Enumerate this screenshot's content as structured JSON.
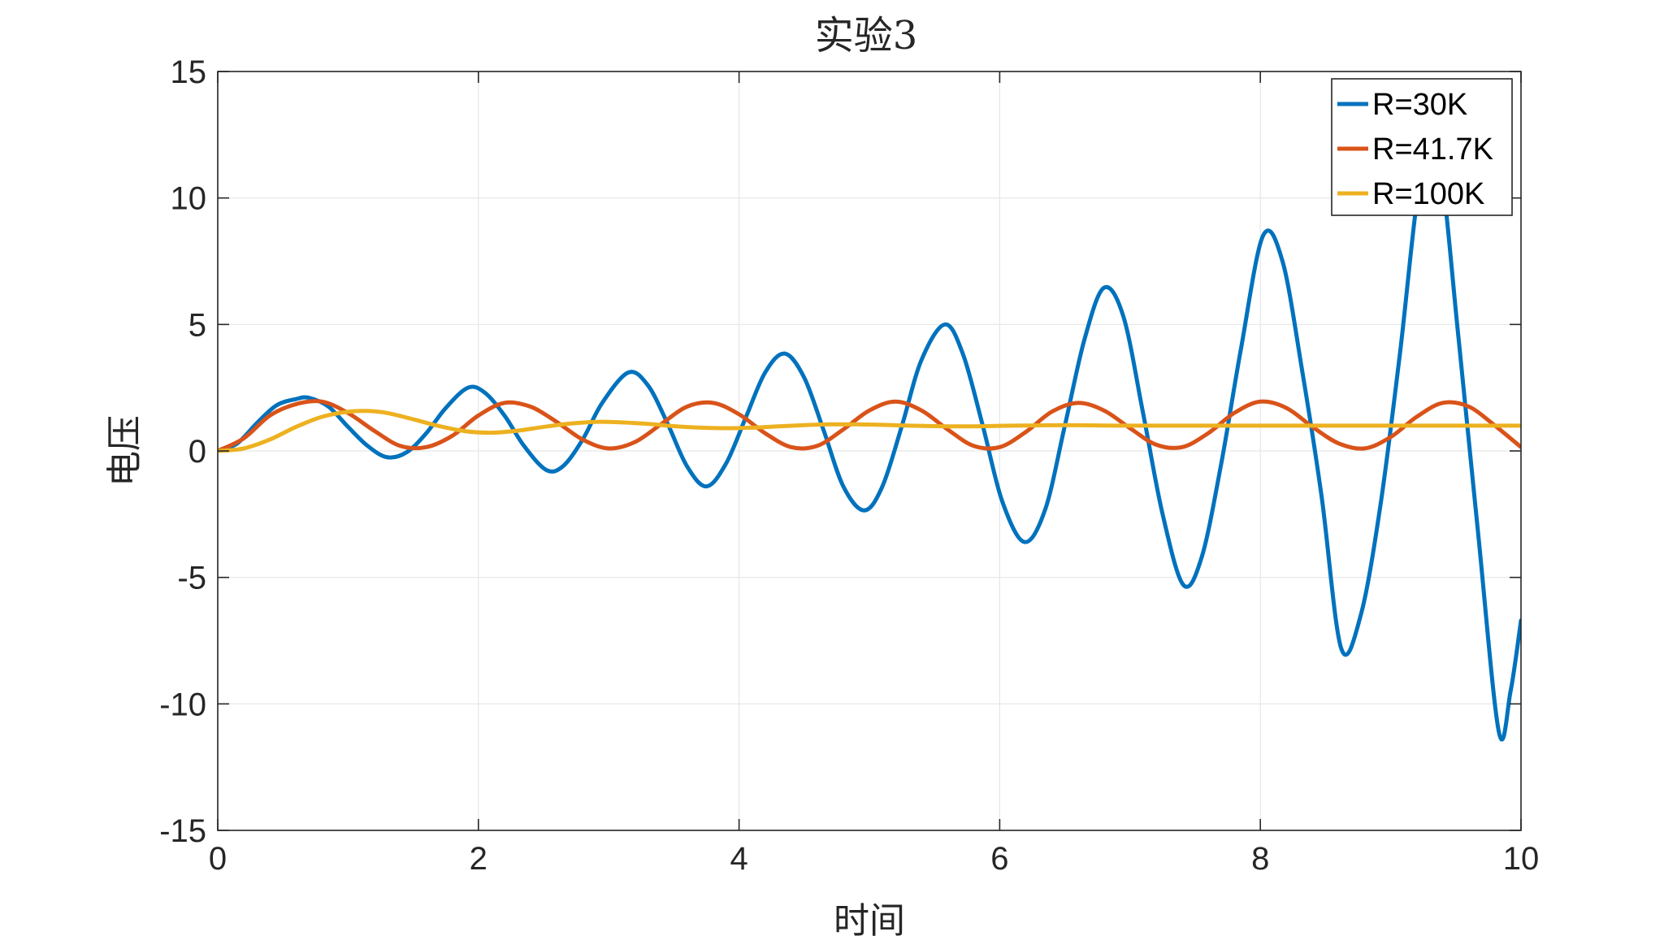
{
  "chart_data": {
    "type": "line",
    "title": "实验3",
    "xlabel": "时间",
    "ylabel": "电压",
    "xlim": [
      0,
      10
    ],
    "ylim": [
      -15,
      15
    ],
    "xticks": [
      0,
      2,
      4,
      6,
      8,
      10
    ],
    "yticks": [
      -15,
      -10,
      -5,
      0,
      5,
      10,
      15
    ],
    "grid": true,
    "legend_position": "top-right",
    "series": [
      {
        "name": "R=30K",
        "color": "#0072BD",
        "x": [
          0,
          0.15,
          0.3,
          0.45,
          0.6,
          0.7,
          0.85,
          1.0,
          1.15,
          1.3,
          1.45,
          1.6,
          1.75,
          1.92,
          2.05,
          2.2,
          2.35,
          2.52,
          2.65,
          2.8,
          2.95,
          3.15,
          3.3,
          3.45,
          3.6,
          3.75,
          3.9,
          4.05,
          4.2,
          4.35,
          4.5,
          4.65,
          4.8,
          4.96,
          5.1,
          5.25,
          5.4,
          5.58,
          5.72,
          5.87,
          6.02,
          6.19,
          6.35,
          6.5,
          6.65,
          6.8,
          6.95,
          7.1,
          7.25,
          7.41,
          7.55,
          7.7,
          7.85,
          8.02,
          8.17,
          8.32,
          8.47,
          8.62,
          8.77,
          8.92,
          9.07,
          9.23,
          9.37,
          9.52,
          9.67,
          9.83,
          9.92,
          10.0
        ],
        "y": [
          0,
          0.3,
          1.1,
          1.8,
          2.05,
          2.1,
          1.75,
          0.95,
          0.2,
          -0.25,
          -0.05,
          0.7,
          1.7,
          2.5,
          2.3,
          1.4,
          0.2,
          -0.75,
          -0.6,
          0.45,
          1.9,
          3.1,
          2.6,
          1.1,
          -0.6,
          -1.4,
          -0.5,
          1.3,
          3.1,
          3.85,
          2.9,
          0.8,
          -1.4,
          -2.35,
          -1.4,
          1.0,
          3.6,
          5.0,
          3.8,
          1.0,
          -2.0,
          -3.6,
          -2.3,
          1.0,
          4.4,
          6.45,
          5.3,
          1.5,
          -2.5,
          -5.3,
          -4.2,
          -0.5,
          4.0,
          8.5,
          7.5,
          3.2,
          -1.8,
          -7.8,
          -6.5,
          -2.2,
          3.8,
          10.8,
          11.5,
          4.5,
          -3.2,
          -11.1,
          -9.5,
          -6.7
        ]
      },
      {
        "name": "R=41.7K",
        "color": "#D95319",
        "x": [
          0,
          0.2,
          0.4,
          0.6,
          0.8,
          1.0,
          1.2,
          1.4,
          1.6,
          1.8,
          2.0,
          2.2,
          2.4,
          2.6,
          2.8,
          3.0,
          3.2,
          3.4,
          3.6,
          3.8,
          4.0,
          4.2,
          4.4,
          4.6,
          4.8,
          5.0,
          5.2,
          5.4,
          5.6,
          5.8,
          6.0,
          6.2,
          6.4,
          6.6,
          6.8,
          7.0,
          7.2,
          7.4,
          7.6,
          7.8,
          8.0,
          8.2,
          8.4,
          8.6,
          8.8,
          9.0,
          9.2,
          9.4,
          9.6,
          9.8,
          10.0
        ],
        "y": [
          0,
          0.5,
          1.4,
          1.85,
          1.95,
          1.5,
          0.8,
          0.2,
          0.15,
          0.6,
          1.4,
          1.9,
          1.75,
          1.15,
          0.45,
          0.1,
          0.35,
          1.05,
          1.75,
          1.9,
          1.45,
          0.7,
          0.15,
          0.2,
          0.85,
          1.6,
          1.95,
          1.6,
          0.85,
          0.2,
          0.15,
          0.75,
          1.55,
          1.9,
          1.6,
          0.9,
          0.25,
          0.15,
          0.7,
          1.5,
          1.95,
          1.7,
          0.95,
          0.3,
          0.1,
          0.55,
          1.35,
          1.9,
          1.75,
          1.0,
          0.15
        ]
      },
      {
        "name": "R=100K",
        "color": "#EDB120",
        "x": [
          0,
          0.2,
          0.4,
          0.6,
          0.8,
          1.0,
          1.15,
          1.3,
          1.5,
          1.7,
          1.9,
          2.1,
          2.3,
          2.5,
          2.7,
          2.9,
          3.1,
          3.3,
          3.5,
          3.7,
          3.9,
          4.1,
          4.3,
          4.5,
          4.7,
          4.9,
          5.1,
          5.3,
          5.5,
          5.7,
          5.9,
          6.1,
          6.3,
          6.5,
          6.7,
          6.9,
          7.1,
          7.3,
          7.5,
          7.7,
          7.9,
          8.1,
          8.3,
          8.5,
          8.7,
          8.9,
          9.1,
          9.3,
          9.5,
          9.7,
          9.9,
          10.0
        ],
        "y": [
          0,
          0.1,
          0.45,
          0.95,
          1.35,
          1.55,
          1.58,
          1.5,
          1.25,
          0.98,
          0.78,
          0.72,
          0.8,
          0.95,
          1.08,
          1.15,
          1.13,
          1.07,
          0.98,
          0.92,
          0.9,
          0.92,
          0.97,
          1.02,
          1.05,
          1.05,
          1.03,
          1.0,
          0.98,
          0.97,
          0.98,
          1.0,
          1.01,
          1.02,
          1.01,
          1.0,
          1.0,
          1.0,
          1.0,
          1.0,
          1.0,
          1.0,
          1.0,
          1.0,
          1.0,
          1.0,
          1.0,
          1.0,
          1.0,
          1.0,
          1.0,
          1.0
        ]
      }
    ]
  }
}
